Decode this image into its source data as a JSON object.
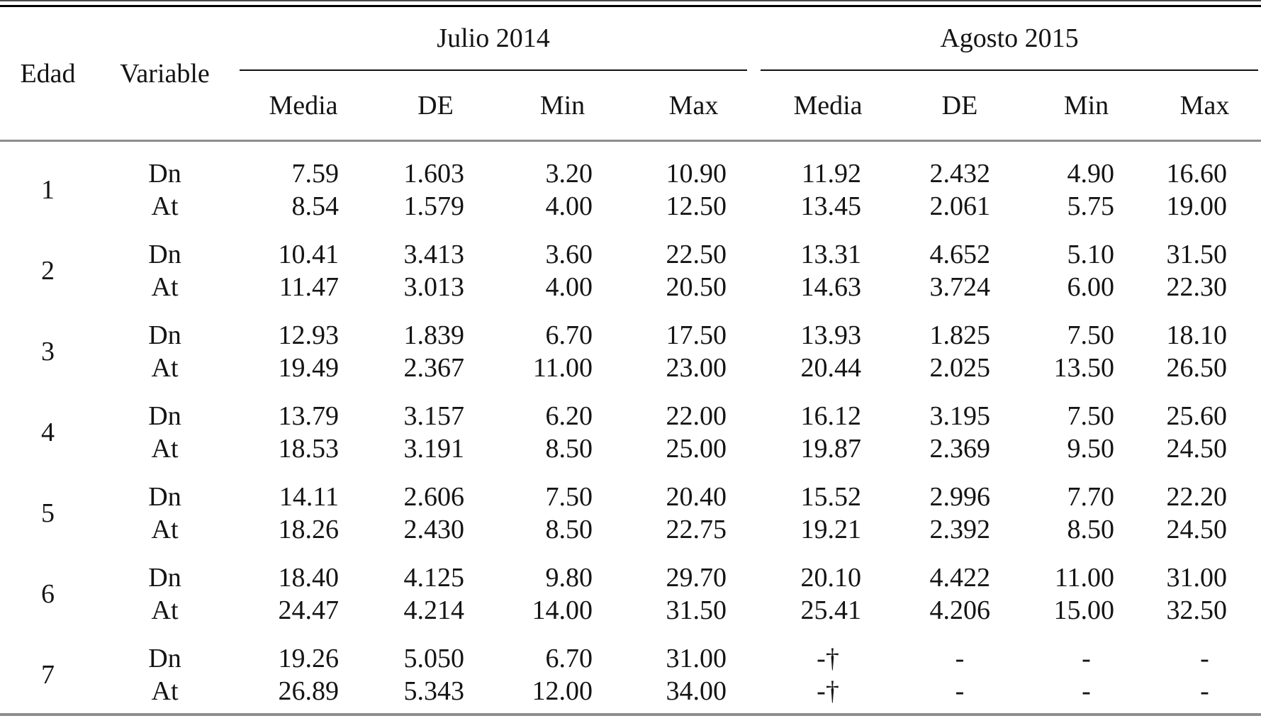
{
  "table": {
    "header": {
      "edad": "Edad",
      "variable": "Variable"
    },
    "span_headers": [
      "Julio 2014",
      "Agosto 2015"
    ],
    "sub_headers": [
      "Media",
      "DE",
      "Min",
      "Max",
      "Media",
      "DE",
      "Min",
      "Max"
    ],
    "rows": [
      {
        "edad": "1",
        "variables": [
          {
            "name": "Dn",
            "values": [
              "7.59",
              "1.603",
              "3.20",
              "10.90",
              "11.92",
              "2.432",
              "4.90",
              "16.60"
            ]
          },
          {
            "name": "At",
            "values": [
              "8.54",
              "1.579",
              "4.00",
              "12.50",
              "13.45",
              "2.061",
              "5.75",
              "19.00"
            ]
          }
        ]
      },
      {
        "edad": "2",
        "variables": [
          {
            "name": "Dn",
            "values": [
              "10.41",
              "3.413",
              "3.60",
              "22.50",
              "13.31",
              "4.652",
              "5.10",
              "31.50"
            ]
          },
          {
            "name": "At",
            "values": [
              "11.47",
              "3.013",
              "4.00",
              "20.50",
              "14.63",
              "3.724",
              "6.00",
              "22.30"
            ]
          }
        ]
      },
      {
        "edad": "3",
        "variables": [
          {
            "name": "Dn",
            "values": [
              "12.93",
              "1.839",
              "6.70",
              "17.50",
              "13.93",
              "1.825",
              "7.50",
              "18.10"
            ]
          },
          {
            "name": "At",
            "values": [
              "19.49",
              "2.367",
              "11.00",
              "23.00",
              "20.44",
              "2.025",
              "13.50",
              "26.50"
            ]
          }
        ]
      },
      {
        "edad": "4",
        "variables": [
          {
            "name": "Dn",
            "values": [
              "13.79",
              "3.157",
              "6.20",
              "22.00",
              "16.12",
              "3.195",
              "7.50",
              "25.60"
            ]
          },
          {
            "name": "At",
            "values": [
              "18.53",
              "3.191",
              "8.50",
              "25.00",
              "19.87",
              "2.369",
              "9.50",
              "24.50"
            ]
          }
        ]
      },
      {
        "edad": "5",
        "variables": [
          {
            "name": "Dn",
            "values": [
              "14.11",
              "2.606",
              "7.50",
              "20.40",
              "15.52",
              "2.996",
              "7.70",
              "22.20"
            ]
          },
          {
            "name": "At",
            "values": [
              "18.26",
              "2.430",
              "8.50",
              "22.75",
              "19.21",
              "2.392",
              "8.50",
              "24.50"
            ]
          }
        ]
      },
      {
        "edad": "6",
        "variables": [
          {
            "name": "Dn",
            "values": [
              "18.40",
              "4.125",
              "9.80",
              "29.70",
              "20.10",
              "4.422",
              "11.00",
              "31.00"
            ]
          },
          {
            "name": "At",
            "values": [
              "24.47",
              "4.214",
              "14.00",
              "31.50",
              "25.41",
              "4.206",
              "15.00",
              "32.50"
            ]
          }
        ]
      },
      {
        "edad": "7",
        "variables": [
          {
            "name": "Dn",
            "values": [
              "19.26",
              "5.050",
              "6.70",
              "31.00",
              "-†",
              "-",
              "-",
              "-"
            ]
          },
          {
            "name": "At",
            "values": [
              "26.89",
              "5.343",
              "12.00",
              "34.00",
              "-†",
              "-",
              "-",
              "-"
            ]
          }
        ]
      }
    ]
  }
}
